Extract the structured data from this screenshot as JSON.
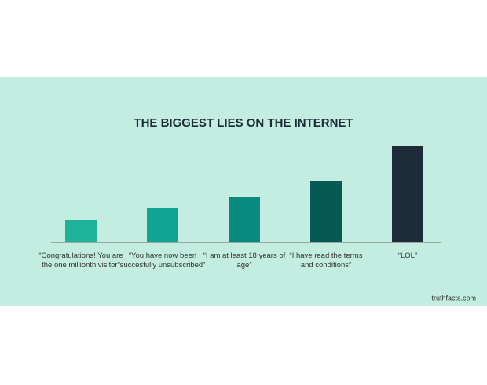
{
  "chart_data": {
    "type": "bar",
    "title": "THE BIGGEST LIES ON THE INTERNET",
    "categories": [
      "“Congratulations! You are the one millionth visitor”",
      "“You have now been succesfully unsubscribed”",
      "“I am at least 18 years of age”",
      "“I have read the terms and conditions”",
      "“LOL”"
    ],
    "values": [
      28,
      43,
      57,
      77,
      122
    ],
    "colors": [
      "#1db39a",
      "#10a593",
      "#0a8a7e",
      "#065a56",
      "#1c2b38"
    ],
    "ylim": [
      0,
      130
    ],
    "source": "truthfacts.com"
  }
}
